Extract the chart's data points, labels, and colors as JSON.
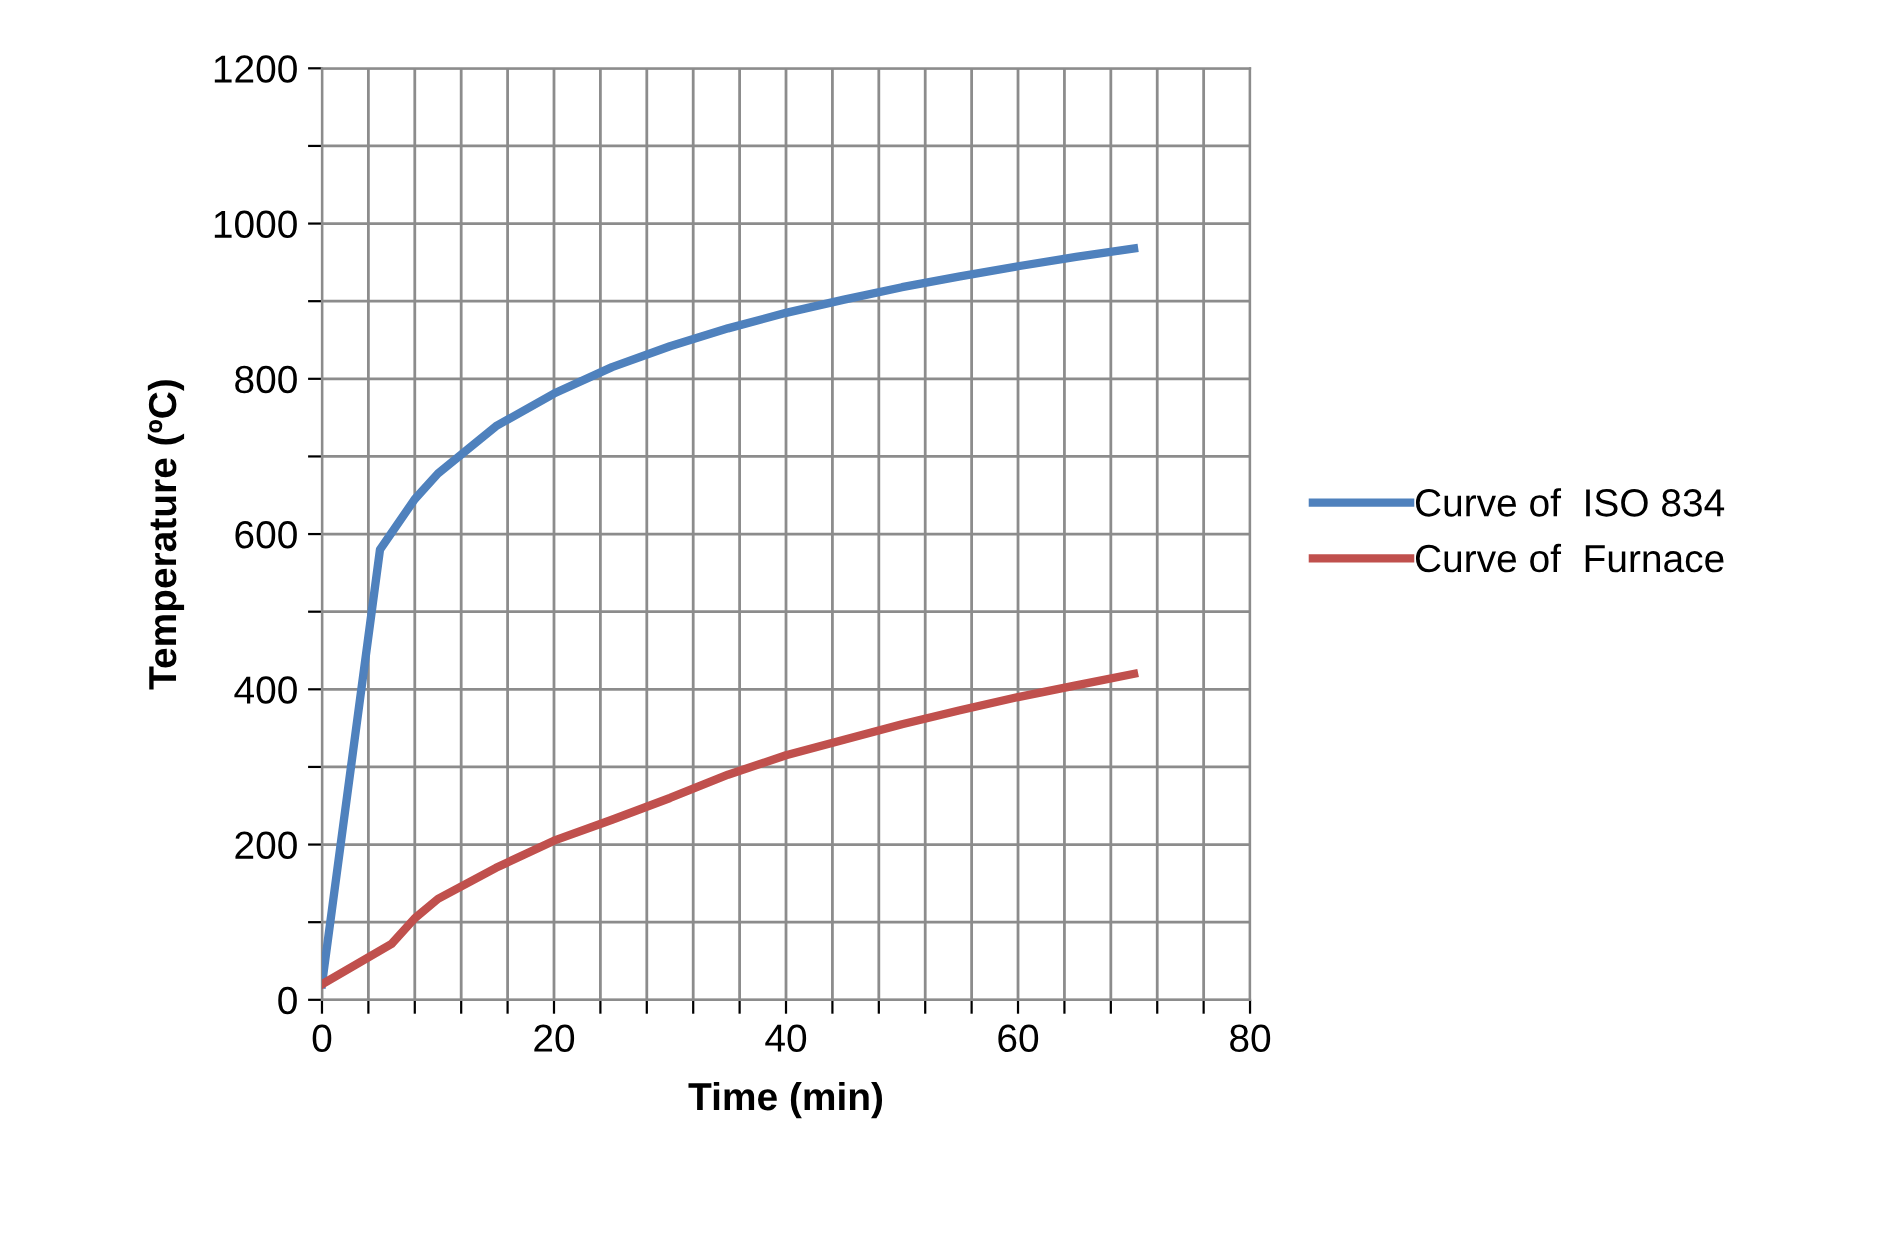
{
  "chart_data": {
    "type": "line",
    "xlabel": "Time (min)",
    "ylabel": "Temperature (ºC)",
    "xlim": [
      0,
      80
    ],
    "ylim": [
      0,
      1200
    ],
    "xticks": [
      0,
      {
        "value": 4,
        "label": null
      },
      {
        "value": 8,
        "label": null
      },
      {
        "value": 12,
        "label": null
      },
      {
        "value": 16,
        "label": null
      },
      20,
      {
        "value": 24,
        "label": null
      },
      {
        "value": 28,
        "label": null
      },
      {
        "value": 32,
        "label": null
      },
      {
        "value": 36,
        "label": null
      },
      40,
      {
        "value": 44,
        "label": null
      },
      {
        "value": 48,
        "label": null
      },
      {
        "value": 52,
        "label": null
      },
      {
        "value": 56,
        "label": null
      },
      60,
      {
        "value": 64,
        "label": null
      },
      {
        "value": 68,
        "label": null
      },
      {
        "value": 72,
        "label": null
      },
      {
        "value": 76,
        "label": null
      },
      80
    ],
    "yticks": [
      0,
      {
        "value": 100,
        "label": null
      },
      200,
      {
        "value": 300,
        "label": null
      },
      400,
      {
        "value": 500,
        "label": null
      },
      600,
      {
        "value": 700,
        "label": null
      },
      800,
      {
        "value": 900,
        "label": null
      },
      1000,
      {
        "value": 1100,
        "label": null
      },
      1200
    ],
    "grid": true,
    "legend": "right",
    "marker": "none",
    "line_style": "solid",
    "series": [
      {
        "name": "Curve of  ISO 834",
        "color": "#4f81bd",
        "x": [
          0,
          5,
          8,
          10,
          15,
          20,
          25,
          30,
          35,
          40,
          45,
          50,
          55,
          60,
          65,
          70
        ],
        "values": [
          20,
          580,
          645,
          678,
          739,
          781,
          815,
          842,
          865,
          885,
          902,
          918,
          932,
          945,
          957,
          968
        ]
      },
      {
        "name": "Curve of  Furnace",
        "color": "#c0504d",
        "x": [
          0,
          6,
          8,
          10,
          15,
          20,
          25,
          30,
          35,
          40,
          45,
          50,
          55,
          60,
          65,
          70
        ],
        "values": [
          20,
          72,
          105,
          130,
          170,
          205,
          232,
          260,
          290,
          315,
          335,
          355,
          373,
          390,
          405,
          420
        ]
      }
    ]
  }
}
